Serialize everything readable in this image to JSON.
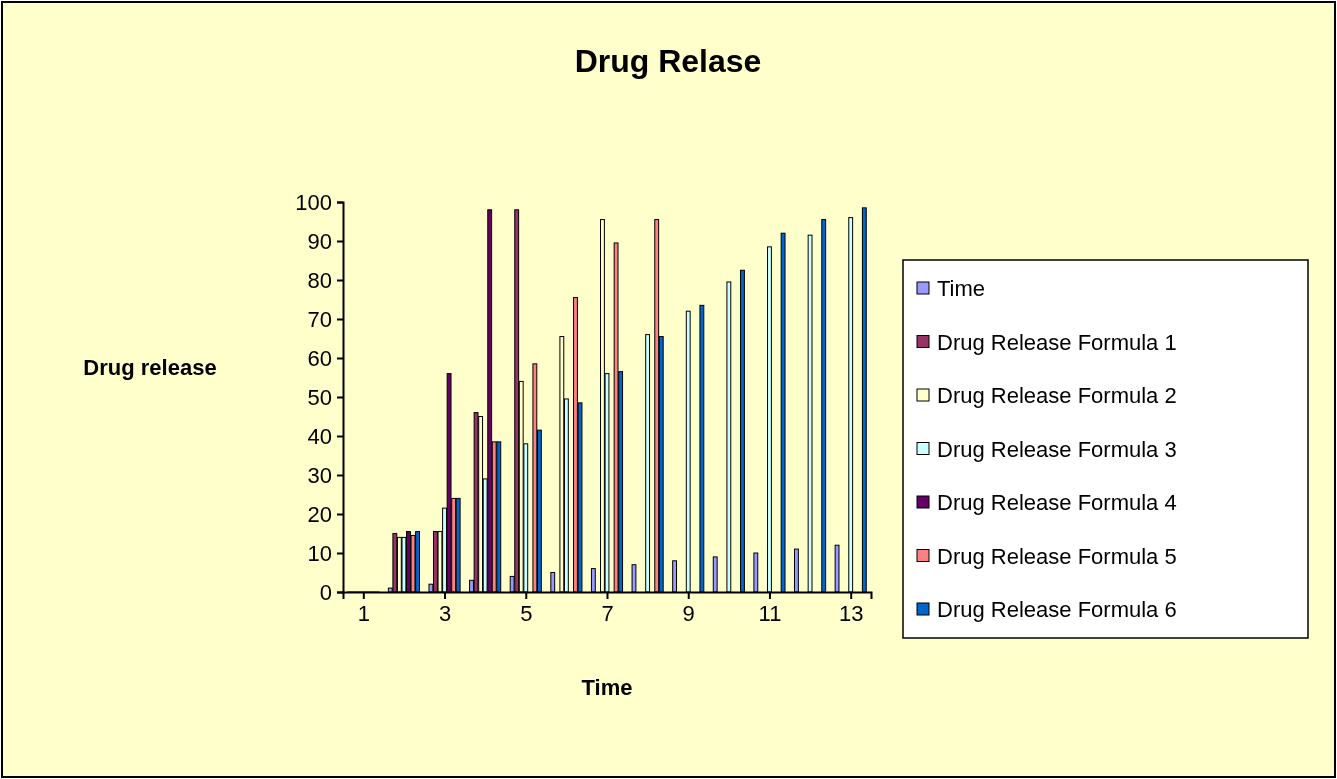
{
  "chart_data": {
    "type": "bar",
    "title": "Drug Relase",
    "xlabel": "Time",
    "ylabel": "Drug release",
    "x": [
      1,
      2,
      3,
      4,
      5,
      6,
      7,
      8,
      9,
      10,
      11,
      12,
      13
    ],
    "xlim": [
      0.5,
      13.5
    ],
    "xticks": [
      1,
      3,
      5,
      7,
      9,
      11,
      13
    ],
    "series": [
      {
        "name": "Time",
        "color": "#9999ff",
        "values": [
          0,
          1,
          2,
          3,
          4,
          5,
          6,
          7,
          8,
          9,
          10,
          11,
          12
        ]
      },
      {
        "name": "Drug Release Formula 1",
        "color": "#993366",
        "values": [
          0,
          15,
          15.5,
          46,
          98,
          null,
          null,
          null,
          null,
          null,
          null,
          null,
          null
        ]
      },
      {
        "name": "Drug Release Formula 2",
        "color": "#ffffcc",
        "values": [
          0,
          14,
          15.5,
          45,
          54,
          65.5,
          95.5,
          null,
          null,
          null,
          null,
          null,
          null
        ]
      },
      {
        "name": "Drug Release Formula 3",
        "color": "#ccffff",
        "values": [
          0,
          14,
          21.5,
          29,
          38,
          49.5,
          56,
          66,
          72,
          79.5,
          88.5,
          91.5,
          96
        ]
      },
      {
        "name": "Drug Release Formula 4",
        "color": "#660066",
        "values": [
          0,
          15.5,
          56,
          98,
          null,
          null,
          null,
          null,
          null,
          null,
          null,
          null,
          null
        ]
      },
      {
        "name": "Drug Release Formula 5",
        "color": "#ff8080",
        "values": [
          0,
          14.5,
          24,
          38.5,
          58.5,
          75.5,
          89.5,
          95.5,
          null,
          null,
          null,
          null,
          null
        ]
      },
      {
        "name": "Drug Release Formula 6",
        "color": "#0066cc",
        "values": [
          0,
          15.5,
          24,
          38.5,
          41.5,
          48.5,
          56.5,
          65.5,
          73.5,
          82.5,
          92,
          95.5,
          98.5
        ]
      }
    ],
    "ylim": [
      0,
      100
    ],
    "yticks": [
      0,
      10,
      20,
      30,
      40,
      50,
      60,
      70,
      80,
      90,
      100
    ],
    "grid": false,
    "legend": "right"
  }
}
